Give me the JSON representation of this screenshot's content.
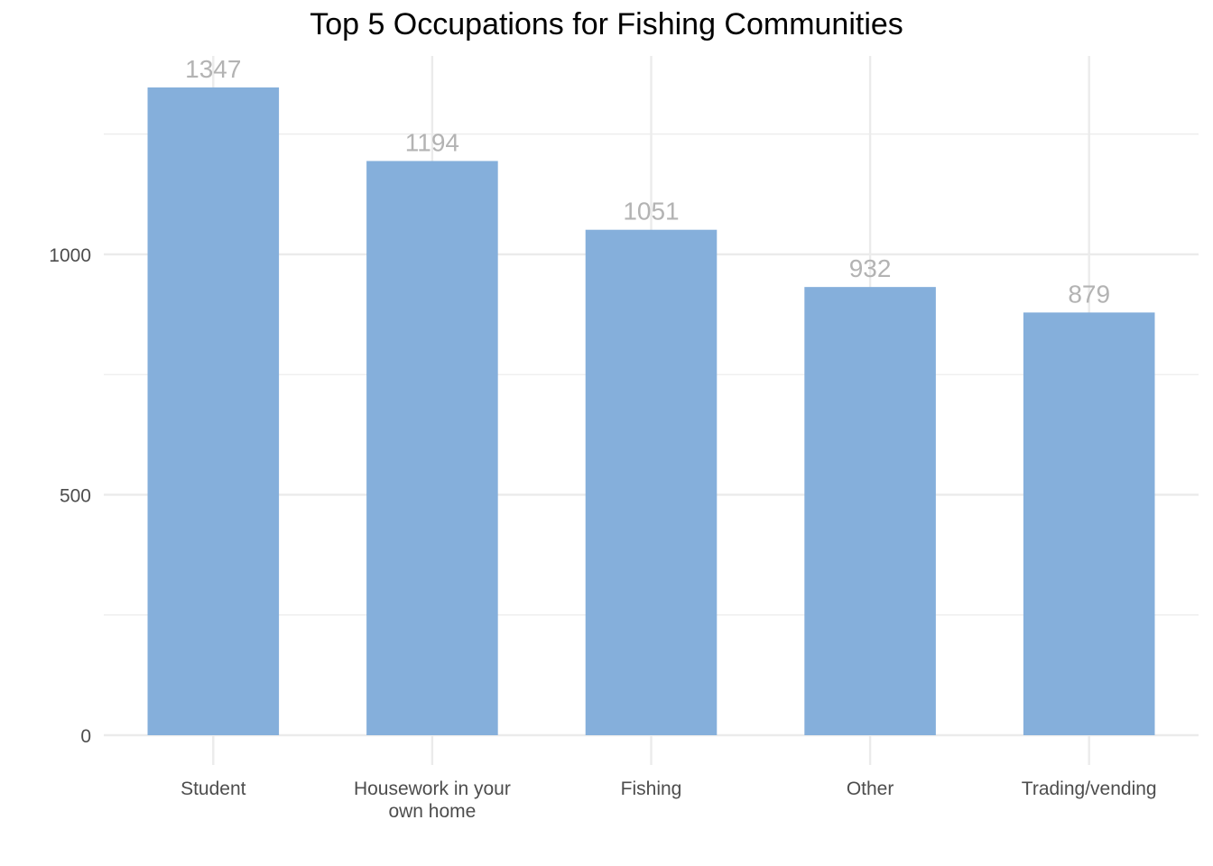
{
  "chart_data": {
    "type": "bar",
    "title": "Top 5 Occupations for Fishing Communities",
    "xlabel": "",
    "ylabel": "",
    "categories": [
      "Student",
      "Housework in your own home",
      "Fishing",
      "Other",
      "Trading/vending"
    ],
    "category_lines": [
      [
        "Student"
      ],
      [
        "Housework in your",
        "own home"
      ],
      [
        "Fishing"
      ],
      [
        "Other"
      ],
      [
        "Trading/vending"
      ]
    ],
    "values": [
      1347,
      1194,
      1051,
      932,
      879
    ],
    "data_labels": [
      "1347",
      "1194",
      "1051",
      "932",
      "879"
    ],
    "y_ticks": [
      0,
      500,
      1000
    ],
    "y_tick_labels": [
      "0",
      "500",
      "1000"
    ],
    "ylim": [
      0,
      1420
    ],
    "grid": true,
    "legend": "none",
    "colors": {
      "bar": "#85AFDB",
      "grid": "#EBEBEB",
      "data_label": "#B3B3B3",
      "tick_label": "#4D4D4D"
    }
  }
}
